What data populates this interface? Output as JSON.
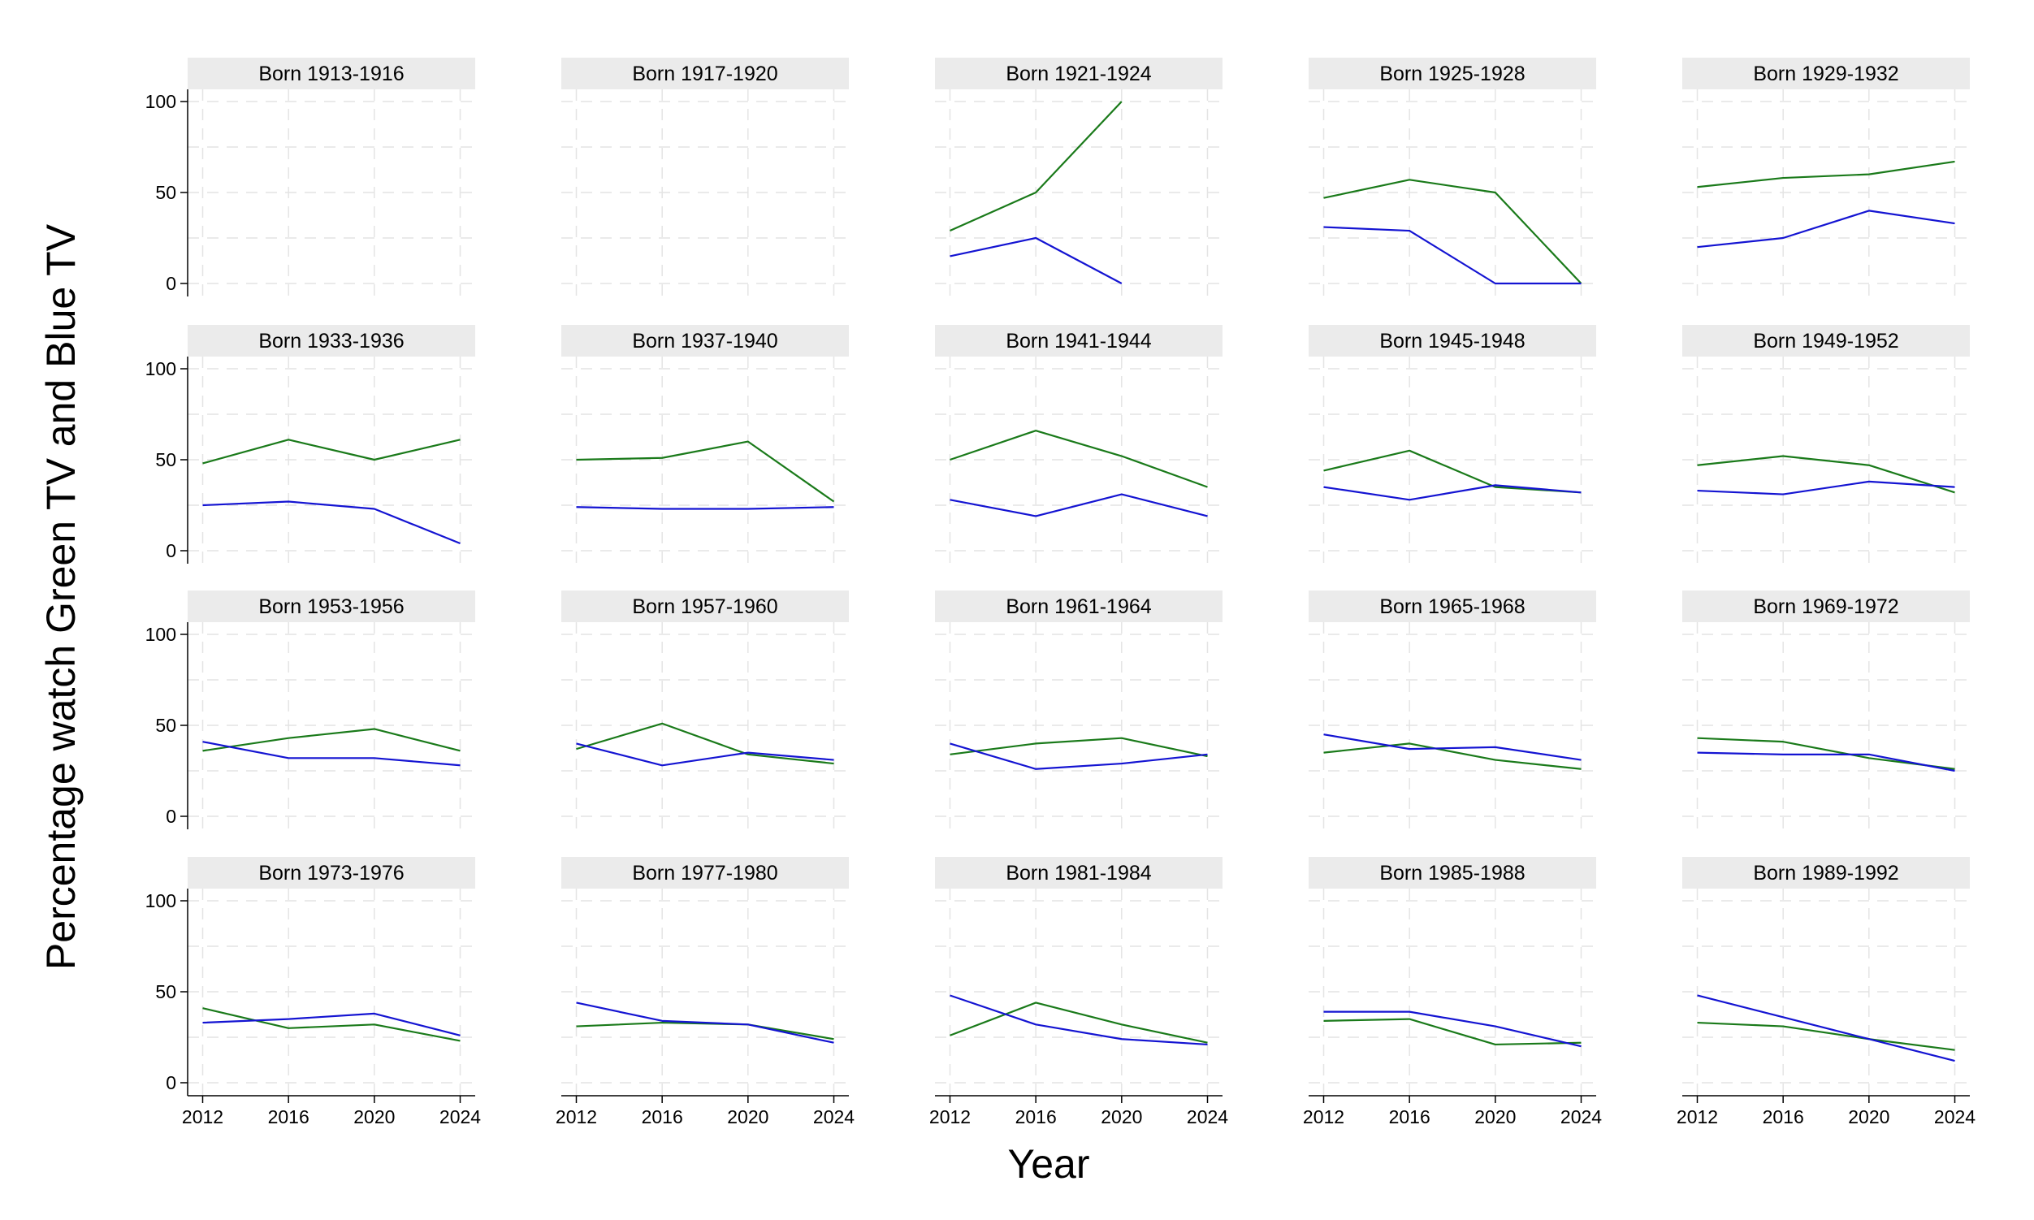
{
  "chart_data": {
    "type": "line",
    "layout": "faceted small multiples, 4 rows x 5 columns, shared axes",
    "ylabel": "Percentage watch Green TV and Blue TV",
    "xlabel": "Year",
    "x": [
      2012,
      2016,
      2020,
      2024
    ],
    "x_tick_labels": [
      "2012",
      "2016",
      "2020",
      "2024"
    ],
    "y_ticks": [
      0,
      50,
      100
    ],
    "y_tick_labels": [
      "0",
      "50",
      "100"
    ],
    "ylim": [
      0,
      105
    ],
    "xlim": [
      2011.3,
      2024.7
    ],
    "grid": "dashed light gray, vertical at each year, horizontal at 0/25/50/75/100",
    "colors": {
      "green_tv": "#1a7a1a",
      "blue_tv": "#1414d2"
    },
    "panels": [
      {
        "title": "Born 1913-1916",
        "green": [
          null,
          null,
          null,
          null
        ],
        "blue": [
          null,
          null,
          null,
          null
        ]
      },
      {
        "title": "Born 1917-1920",
        "green": [
          null,
          null,
          null,
          null
        ],
        "blue": [
          null,
          null,
          null,
          null
        ]
      },
      {
        "title": "Born 1921-1924",
        "green": [
          29,
          50,
          100,
          null
        ],
        "blue": [
          15,
          25,
          0,
          null
        ]
      },
      {
        "title": "Born 1925-1928",
        "green": [
          47,
          57,
          50,
          0
        ],
        "blue": [
          31,
          29,
          0,
          0
        ]
      },
      {
        "title": "Born 1929-1932",
        "green": [
          53,
          58,
          60,
          67
        ],
        "blue": [
          20,
          25,
          40,
          33
        ]
      },
      {
        "title": "Born 1933-1936",
        "green": [
          48,
          61,
          50,
          61
        ],
        "blue": [
          25,
          27,
          23,
          4
        ]
      },
      {
        "title": "Born 1937-1940",
        "green": [
          50,
          51,
          60,
          27
        ],
        "blue": [
          24,
          23,
          23,
          24
        ]
      },
      {
        "title": "Born 1941-1944",
        "green": [
          50,
          66,
          52,
          35
        ],
        "blue": [
          28,
          19,
          31,
          19
        ]
      },
      {
        "title": "Born 1945-1948",
        "green": [
          44,
          55,
          35,
          32
        ],
        "blue": [
          35,
          28,
          36,
          32
        ]
      },
      {
        "title": "Born 1949-1952",
        "green": [
          47,
          52,
          47,
          32
        ],
        "blue": [
          33,
          31,
          38,
          35
        ]
      },
      {
        "title": "Born 1953-1956",
        "green": [
          36,
          43,
          48,
          36
        ],
        "blue": [
          41,
          32,
          32,
          28
        ]
      },
      {
        "title": "Born 1957-1960",
        "green": [
          37,
          51,
          34,
          29
        ],
        "blue": [
          40,
          28,
          35,
          31
        ]
      },
      {
        "title": "Born 1961-1964",
        "green": [
          34,
          40,
          43,
          33
        ],
        "blue": [
          40,
          26,
          29,
          34
        ]
      },
      {
        "title": "Born 1965-1968",
        "green": [
          35,
          40,
          31,
          26
        ],
        "blue": [
          45,
          37,
          38,
          31
        ]
      },
      {
        "title": "Born 1969-1972",
        "green": [
          43,
          41,
          32,
          26
        ],
        "blue": [
          35,
          34,
          34,
          25
        ]
      },
      {
        "title": "Born 1973-1976",
        "green": [
          41,
          30,
          32,
          23
        ],
        "blue": [
          33,
          35,
          38,
          26
        ]
      },
      {
        "title": "Born 1977-1980",
        "green": [
          31,
          33,
          32,
          24
        ],
        "blue": [
          44,
          34,
          32,
          22
        ]
      },
      {
        "title": "Born 1981-1984",
        "green": [
          26,
          44,
          32,
          22
        ],
        "blue": [
          48,
          32,
          24,
          21
        ]
      },
      {
        "title": "Born 1985-1988",
        "green": [
          34,
          35,
          21,
          22
        ],
        "blue": [
          39,
          39,
          31,
          20
        ]
      },
      {
        "title": "Born 1989-1992",
        "green": [
          33,
          31,
          24,
          18
        ],
        "blue": [
          48,
          36,
          24,
          12
        ]
      }
    ]
  }
}
